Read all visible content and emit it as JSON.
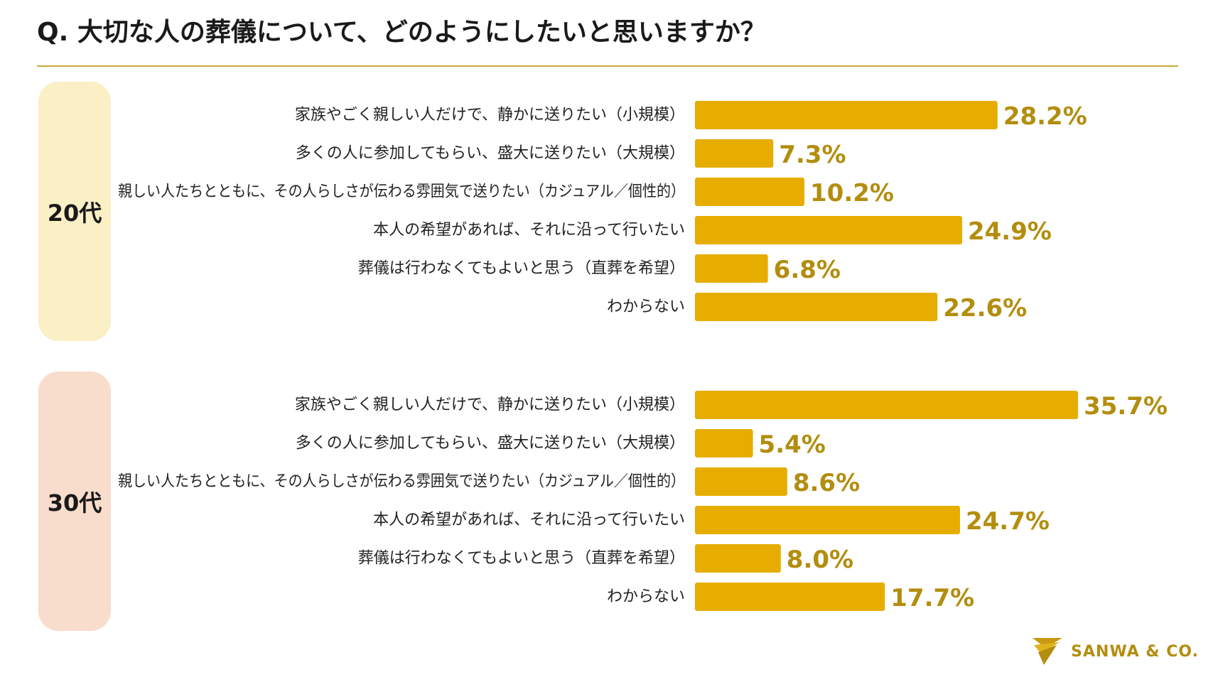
{
  "title": "Q. 大切な人の葬儀について、どのようにしたいと思いますか？",
  "logo_text": "SANWA & CO.",
  "colors": {
    "bar": "#e6ad00",
    "value_text": "#b38d0e",
    "rule": "#c8a83a",
    "pill_20": "#fbefc6",
    "pill_30": "#f8dccc"
  },
  "chart_data": [
    {
      "type": "bar",
      "orientation": "horizontal",
      "group": "20代",
      "categories": [
        "家族やごく親しい人だけで、静かに送りたい（小規模）",
        "多くの人に参加してもらい、盛大に送りたい（大規模）",
        "親しい人たちとともに、その人らしさが伝わる雰囲気で送りたい（カジュアル／個性的）",
        "本人の希望があれば、それに沿って行いたい",
        "葬儀は行わなくてもよいと思う（直葬を希望）",
        "わからない"
      ],
      "values": [
        28.2,
        7.3,
        10.2,
        24.9,
        6.8,
        22.6
      ],
      "value_labels": [
        "28.2%",
        "7.3%",
        "10.2%",
        "24.9%",
        "6.8%",
        "22.6%"
      ]
    },
    {
      "type": "bar",
      "orientation": "horizontal",
      "group": "30代",
      "categories": [
        "家族やごく親しい人だけで、静かに送りたい（小規模）",
        "多くの人に参加してもらい、盛大に送りたい（大規模）",
        "親しい人たちとともに、その人らしさが伝わる雰囲気で送りたい（カジュアル／個性的）",
        "本人の希望があれば、それに沿って行いたい",
        "葬儀は行わなくてもよいと思う（直葬を希望）",
        "わからない"
      ],
      "values": [
        35.7,
        5.4,
        8.6,
        24.7,
        8.0,
        17.7
      ],
      "value_labels": [
        "35.7%",
        "5.4%",
        "8.6%",
        "24.7%",
        "8.0%",
        "17.7%"
      ]
    }
  ]
}
